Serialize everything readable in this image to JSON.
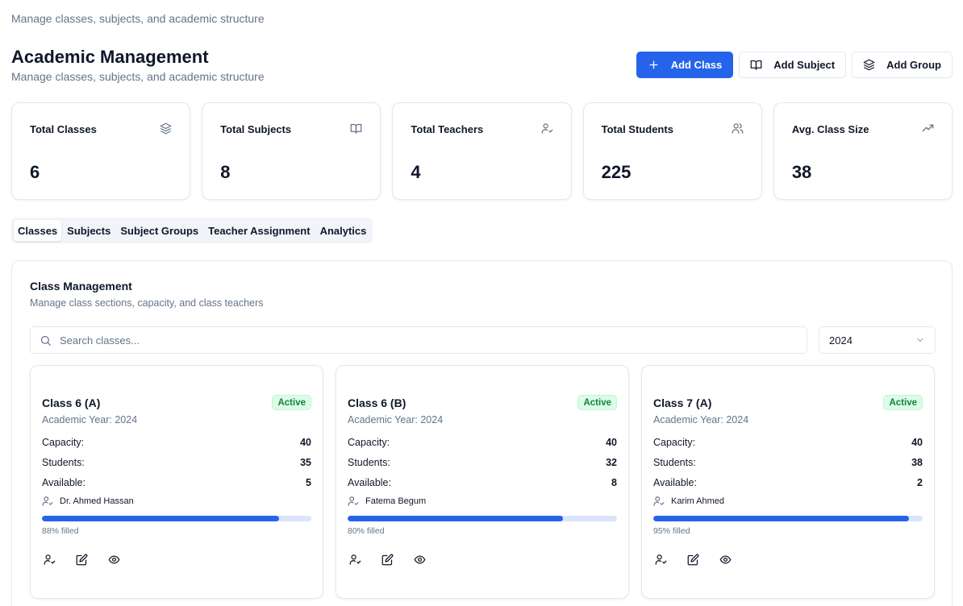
{
  "top": {
    "subtitle": "Manage classes, subjects, and academic structure"
  },
  "header": {
    "title": "Academic Management",
    "subtitle": "Manage classes, subjects, and academic structure",
    "add_class": "Add Class",
    "add_subject": "Add Subject",
    "add_group": "Add Group"
  },
  "stats": [
    {
      "label": "Total Classes",
      "value": "6",
      "icon": "layers-icon"
    },
    {
      "label": "Total Subjects",
      "value": "8",
      "icon": "book-icon"
    },
    {
      "label": "Total Teachers",
      "value": "4",
      "icon": "user-check-icon"
    },
    {
      "label": "Total Students",
      "value": "225",
      "icon": "users-icon"
    },
    {
      "label": "Avg. Class Size",
      "value": "38",
      "icon": "trending-up-icon"
    }
  ],
  "tabs": [
    {
      "label": "Classes",
      "active": true
    },
    {
      "label": "Subjects"
    },
    {
      "label": "Subject Groups"
    },
    {
      "label": "Teacher Assignment"
    },
    {
      "label": "Analytics"
    }
  ],
  "panel": {
    "title": "Class Management",
    "subtitle": "Manage class sections, capacity, and class teachers",
    "search_placeholder": "Search classes...",
    "year": "2024"
  },
  "classes": [
    {
      "name": "Class 6 (A)",
      "status": "Active",
      "year": "Academic Year: 2024",
      "capacity_label": "Capacity:",
      "capacity": "40",
      "students_label": "Students:",
      "students": "35",
      "available_label": "Available:",
      "available": "5",
      "teacher": "Dr. Ahmed Hassan",
      "fill": 88,
      "filled_label": "88% filled"
    },
    {
      "name": "Class 6 (B)",
      "status": "Active",
      "year": "Academic Year: 2024",
      "capacity_label": "Capacity:",
      "capacity": "40",
      "students_label": "Students:",
      "students": "32",
      "available_label": "Available:",
      "available": "8",
      "teacher": "Fatema Begum",
      "fill": 80,
      "filled_label": "80% filled"
    },
    {
      "name": "Class 7 (A)",
      "status": "Active",
      "year": "Academic Year: 2024",
      "capacity_label": "Capacity:",
      "capacity": "40",
      "students_label": "Students:",
      "students": "38",
      "available_label": "Available:",
      "available": "2",
      "teacher": "Karim Ahmed",
      "fill": 95,
      "filled_label": "95% filled"
    }
  ],
  "colors": {
    "primary": "#2563eb",
    "active_badge_bg": "#dcfce7",
    "active_badge_text": "#15803d",
    "muted": "#64748b"
  }
}
